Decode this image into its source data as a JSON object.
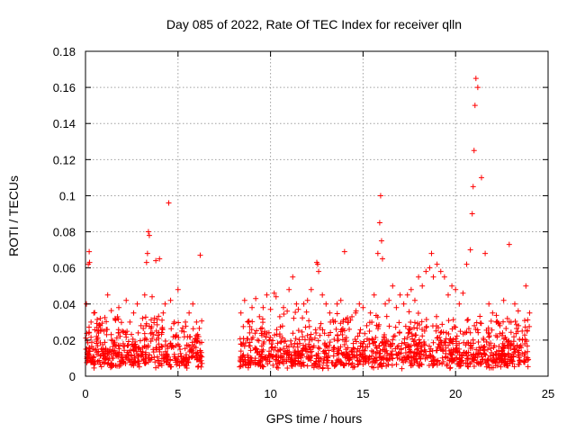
{
  "chart_data": {
    "type": "scatter",
    "title": "Day 085 of 2022, Rate Of TEC Index for receiver qlln",
    "xlabel": "GPS time / hours",
    "ylabel": "ROTI / TECUs",
    "xlim": [
      0,
      25
    ],
    "ylim": [
      0,
      0.18
    ],
    "xticks": [
      0,
      5,
      10,
      15,
      20,
      25
    ],
    "xtick_labels": [
      "0",
      "5",
      "10",
      "15",
      "20",
      "25"
    ],
    "yticks": [
      0,
      0.02,
      0.04,
      0.06,
      0.08,
      0.1,
      0.12,
      0.14,
      0.16,
      0.18
    ],
    "ytick_labels": [
      "0",
      "0.02",
      "0.04",
      "0.06",
      "0.08",
      "0.1",
      "0.12",
      "0.14",
      "0.16",
      "0.18"
    ],
    "grid": true,
    "marker": "+",
    "color": "#ff0000",
    "gap": [
      6.3,
      8.3
    ],
    "series": [
      {
        "name": "ROTI",
        "x": [
          0.05,
          0.15,
          0.2,
          0.22,
          0.3,
          0.45,
          0.6,
          0.8,
          1.0,
          1.2,
          1.4,
          1.6,
          1.8,
          2.0,
          2.2,
          2.4,
          2.6,
          2.8,
          3.0,
          3.2,
          3.3,
          3.35,
          3.4,
          3.45,
          3.6,
          3.8,
          4.0,
          4.2,
          4.3,
          4.5,
          4.6,
          4.8,
          5.0,
          5.2,
          5.4,
          5.6,
          5.8,
          6.0,
          6.2,
          8.4,
          8.6,
          8.8,
          9.0,
          9.2,
          9.4,
          9.6,
          9.8,
          10.0,
          10.2,
          10.3,
          10.5,
          10.7,
          10.9,
          11.0,
          11.2,
          11.4,
          11.5,
          11.8,
          12.0,
          12.2,
          12.5,
          12.55,
          12.6,
          12.8,
          13.0,
          13.2,
          13.4,
          13.6,
          13.8,
          14.0,
          14.2,
          14.4,
          14.6,
          14.8,
          15.0,
          15.2,
          15.4,
          15.6,
          15.8,
          15.9,
          15.95,
          16.0,
          16.05,
          16.2,
          16.4,
          16.6,
          16.8,
          17.0,
          17.2,
          17.4,
          17.6,
          17.8,
          18.0,
          18.2,
          18.4,
          18.6,
          18.7,
          18.8,
          19.0,
          19.2,
          19.4,
          19.6,
          19.8,
          20.0,
          20.2,
          20.4,
          20.6,
          20.8,
          20.9,
          20.95,
          21.0,
          21.05,
          21.1,
          21.2,
          21.4,
          21.6,
          21.8,
          22.0,
          22.2,
          22.4,
          22.6,
          22.8,
          22.9,
          23.0,
          23.2,
          23.4,
          23.6,
          23.8,
          24.0
        ],
        "y": [
          0.04,
          0.062,
          0.069,
          0.063,
          0.03,
          0.035,
          0.022,
          0.028,
          0.025,
          0.045,
          0.02,
          0.032,
          0.038,
          0.025,
          0.042,
          0.03,
          0.035,
          0.04,
          0.028,
          0.045,
          0.063,
          0.068,
          0.08,
          0.078,
          0.044,
          0.064,
          0.065,
          0.035,
          0.04,
          0.096,
          0.042,
          0.03,
          0.048,
          0.025,
          0.03,
          0.035,
          0.04,
          0.03,
          0.067,
          0.035,
          0.042,
          0.03,
          0.038,
          0.043,
          0.033,
          0.038,
          0.045,
          0.037,
          0.046,
          0.044,
          0.033,
          0.038,
          0.036,
          0.048,
          0.055,
          0.04,
          0.037,
          0.04,
          0.042,
          0.048,
          0.063,
          0.062,
          0.058,
          0.045,
          0.04,
          0.035,
          0.03,
          0.04,
          0.042,
          0.069,
          0.03,
          0.033,
          0.035,
          0.04,
          0.038,
          0.028,
          0.035,
          0.045,
          0.068,
          0.085,
          0.1,
          0.075,
          0.065,
          0.04,
          0.042,
          0.05,
          0.038,
          0.045,
          0.04,
          0.045,
          0.048,
          0.042,
          0.055,
          0.05,
          0.058,
          0.06,
          0.068,
          0.055,
          0.062,
          0.058,
          0.055,
          0.045,
          0.05,
          0.048,
          0.04,
          0.046,
          0.062,
          0.07,
          0.09,
          0.105,
          0.125,
          0.15,
          0.165,
          0.16,
          0.11,
          0.068,
          0.04,
          0.035,
          0.03,
          0.028,
          0.042,
          0.032,
          0.073,
          0.03,
          0.04,
          0.028,
          0.025,
          0.05,
          0.035
        ]
      }
    ]
  }
}
